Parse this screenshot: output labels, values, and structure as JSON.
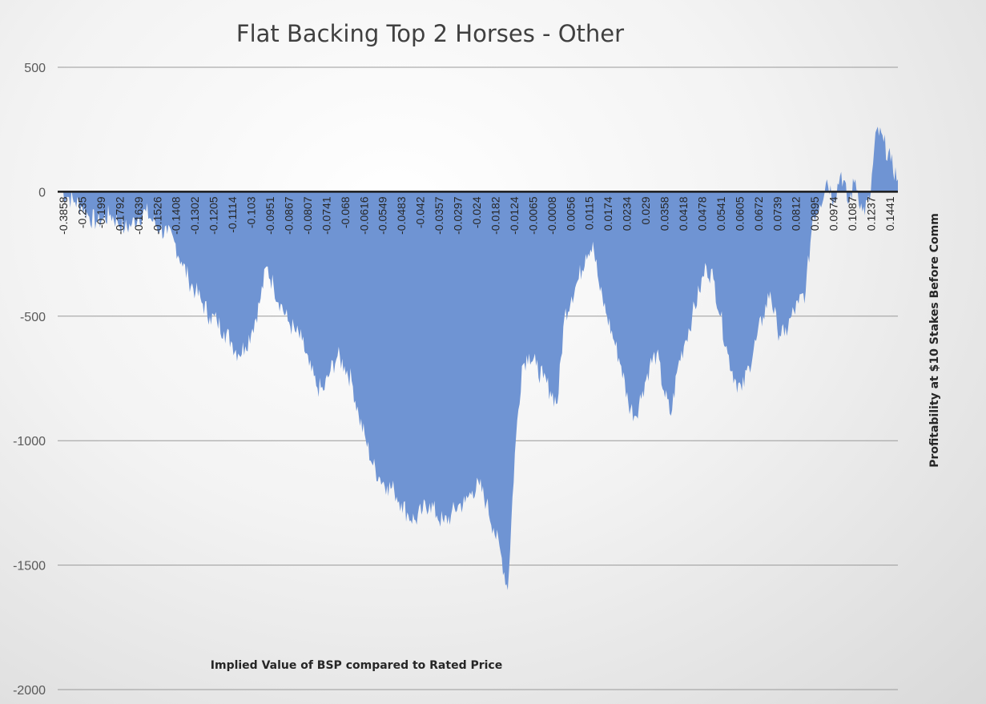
{
  "chart_data": {
    "type": "area",
    "title": "Flat Backing Top 2 Horses - Other",
    "xlabel": "Implied Value of BSP compared to Rated Price",
    "ylabel": "Profitability at $10 Stakes Before Comm",
    "ylim": [
      -2000,
      500
    ],
    "yticks": [
      "500",
      "0",
      "-500",
      "-1000",
      "-1500",
      "-2000"
    ],
    "xticks": [
      "-0.3858",
      "-0.235",
      "-0.199",
      "-0.1792",
      "-0.1639",
      "-0.1526",
      "-0.1408",
      "-0.1302",
      "-0.1205",
      "-0.1114",
      "-0.103",
      "-0.0951",
      "-0.0867",
      "-0.0807",
      "-0.0741",
      "-0.068",
      "-0.0616",
      "-0.0549",
      "-0.0483",
      "-0.042",
      "-0.0357",
      "-0.0297",
      "-0.024",
      "-0.0182",
      "-0.0124",
      "-0.0065",
      "-0.0008",
      "0.0056",
      "0.0115",
      "0.0174",
      "0.0234",
      "0.029",
      "0.0358",
      "0.0418",
      "0.0478",
      "0.0541",
      "0.0605",
      "0.0672",
      "0.0739",
      "0.0812",
      "0.0895",
      "0.0974",
      "0.1087",
      "0.1237",
      "0.1441"
    ],
    "grid": true,
    "color": "#6f94d3",
    "series": [
      {
        "values": [
          0,
          -20,
          -40,
          -60,
          -100,
          -120,
          -110,
          -90,
          -120,
          -150,
          -130,
          -100,
          -80,
          -120,
          -150,
          -170,
          -200,
          -280,
          -350,
          -400,
          -450,
          -500,
          -520,
          -560,
          -600,
          -650,
          -620,
          -550,
          -450,
          -300,
          -380,
          -450,
          -520,
          -560,
          -600,
          -700,
          -780,
          -800,
          -720,
          -660,
          -700,
          -760,
          -900,
          -1000,
          -1100,
          -1150,
          -1180,
          -1200,
          -1250,
          -1300,
          -1320,
          -1280,
          -1250,
          -1300,
          -1330,
          -1300,
          -1260,
          -1250,
          -1200,
          -1180,
          -1250,
          -1350,
          -1450,
          -1600,
          -1050,
          -700,
          -650,
          -700,
          -750,
          -800,
          -850,
          -500,
          -420,
          -350,
          -250,
          -200,
          -400,
          -500,
          -600,
          -700,
          -850,
          -900,
          -800,
          -700,
          -650,
          -800,
          -900,
          -700,
          -600,
          -500,
          -400,
          -300,
          -350,
          -500,
          -650,
          -750,
          -800,
          -700,
          -600,
          -500,
          -400,
          -550,
          -580,
          -500,
          -450,
          -400,
          -100,
          -50,
          50,
          -30,
          80,
          -50,
          50,
          -80,
          -40,
          250,
          200,
          120,
          50
        ]
      }
    ]
  }
}
